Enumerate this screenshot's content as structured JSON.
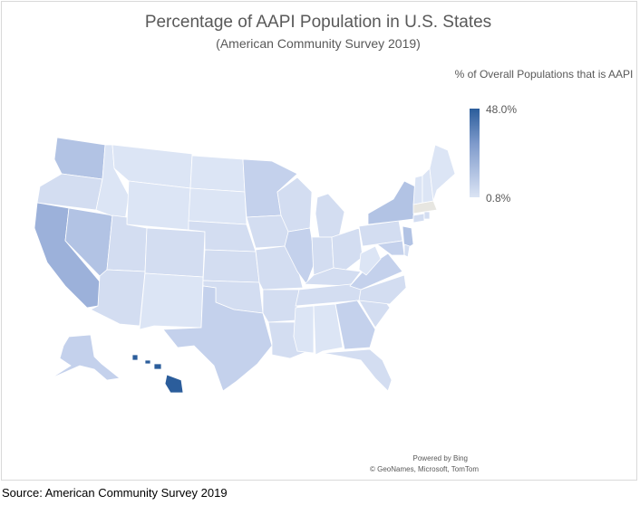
{
  "title": "Percentage of AAPI Population in U.S. States",
  "subtitle": "(American Community Survey 2019)",
  "legend": {
    "title": "% of Overall Populations that is AAPI",
    "max_label": "48.0%",
    "min_label": "0.8%",
    "colors": {
      "high": "#2b5d9b",
      "mid": "#7f9bcc",
      "low": "#dbe4f4"
    }
  },
  "attribution": {
    "powered_by": "Powered by Bing",
    "credits": "© GeoNames, Microsoft, TomTom"
  },
  "source": "Source: American Community Survey 2019",
  "map_data": {
    "type": "choropleth",
    "region": "United States",
    "value_range": [
      0.8,
      48.0
    ],
    "regions": [
      {
        "name": "Washington",
        "shade": "mid"
      },
      {
        "name": "Oregon",
        "shade": "light"
      },
      {
        "name": "California",
        "shade": "mid-high"
      },
      {
        "name": "Nevada",
        "shade": "mid"
      },
      {
        "name": "Idaho",
        "shade": "low"
      },
      {
        "name": "Montana",
        "shade": "low"
      },
      {
        "name": "Wyoming",
        "shade": "low"
      },
      {
        "name": "Utah",
        "shade": "light"
      },
      {
        "name": "Arizona",
        "shade": "light"
      },
      {
        "name": "Colorado",
        "shade": "light"
      },
      {
        "name": "New Mexico",
        "shade": "low"
      },
      {
        "name": "North Dakota",
        "shade": "low"
      },
      {
        "name": "South Dakota",
        "shade": "low"
      },
      {
        "name": "Nebraska",
        "shade": "light"
      },
      {
        "name": "Kansas",
        "shade": "light"
      },
      {
        "name": "Oklahoma",
        "shade": "light"
      },
      {
        "name": "Texas",
        "shade": "light-mid"
      },
      {
        "name": "Minnesota",
        "shade": "light-mid"
      },
      {
        "name": "Iowa",
        "shade": "light"
      },
      {
        "name": "Missouri",
        "shade": "light"
      },
      {
        "name": "Arkansas",
        "shade": "light"
      },
      {
        "name": "Louisiana",
        "shade": "light"
      },
      {
        "name": "Wisconsin",
        "shade": "light"
      },
      {
        "name": "Illinois",
        "shade": "light-mid"
      },
      {
        "name": "Michigan",
        "shade": "light"
      },
      {
        "name": "Indiana",
        "shade": "light"
      },
      {
        "name": "Ohio",
        "shade": "light"
      },
      {
        "name": "Kentucky",
        "shade": "light"
      },
      {
        "name": "Tennessee",
        "shade": "light"
      },
      {
        "name": "Mississippi",
        "shade": "low"
      },
      {
        "name": "Alabama",
        "shade": "low"
      },
      {
        "name": "Georgia",
        "shade": "light-mid"
      },
      {
        "name": "Florida",
        "shade": "light"
      },
      {
        "name": "South Carolina",
        "shade": "light"
      },
      {
        "name": "North Carolina",
        "shade": "light"
      },
      {
        "name": "Virginia",
        "shade": "light-mid"
      },
      {
        "name": "West Virginia",
        "shade": "low"
      },
      {
        "name": "Pennsylvania",
        "shade": "light"
      },
      {
        "name": "New York",
        "shade": "mid"
      },
      {
        "name": "New Jersey",
        "shade": "mid"
      },
      {
        "name": "Maryland",
        "shade": "light-mid"
      },
      {
        "name": "Delaware",
        "shade": "light"
      },
      {
        "name": "Connecticut",
        "shade": "light"
      },
      {
        "name": "Rhode Island",
        "shade": "light"
      },
      {
        "name": "Massachusetts",
        "shade": "no-data"
      },
      {
        "name": "Vermont",
        "shade": "low"
      },
      {
        "name": "New Hampshire",
        "shade": "low"
      },
      {
        "name": "Maine",
        "shade": "low"
      },
      {
        "name": "Alaska",
        "shade": "light-mid"
      },
      {
        "name": "Hawaii",
        "shade": "high"
      }
    ]
  }
}
